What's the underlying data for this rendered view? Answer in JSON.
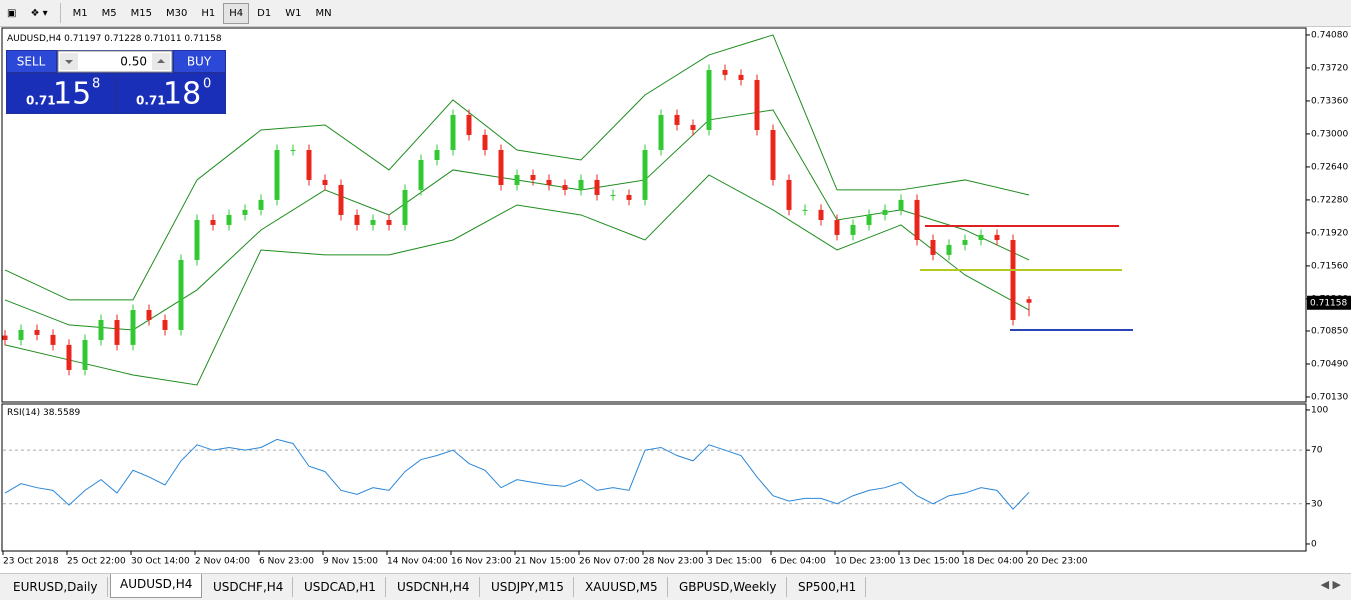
{
  "toolbar": {
    "timeframes": [
      "M1",
      "M5",
      "M15",
      "M30",
      "H1",
      "H4",
      "D1",
      "W1",
      "MN"
    ],
    "active": 5
  },
  "tabs": {
    "items": [
      "EURUSD,Daily",
      "AUDUSD,H4",
      "USDCHF,H4",
      "USDCAD,H1",
      "USDCNH,H4",
      "USDJPY,M15",
      "XAUUSD,M5",
      "GBPUSD,Weekly",
      "SP500,H1"
    ],
    "active": 1
  },
  "trade_panel": {
    "sell": "SELL",
    "buy": "BUY",
    "lot": "0.50",
    "bid": [
      "0.71",
      "15",
      "8"
    ],
    "ask": [
      "0.71",
      "18",
      "0"
    ]
  },
  "chart_data": {
    "type": "candlestick",
    "title": "AUDUSD,H4",
    "categories": [
      "23 Oct 2018",
      null,
      null,
      null,
      "25 Oct 22:00",
      null,
      null,
      null,
      "30 Oct 14:00",
      null,
      null,
      null,
      "2 Nov 04:00",
      null,
      null,
      null,
      "6 Nov 23:00",
      null,
      null,
      null,
      "9 Nov 15:00",
      null,
      null,
      null,
      "14 Nov 04:00",
      null,
      null,
      null,
      "16 Nov 23:00",
      null,
      null,
      null,
      "21 Nov 15:00",
      null,
      null,
      null,
      "26 Nov 07:00",
      null,
      null,
      null,
      "28 Nov 23:00",
      null,
      null,
      null,
      "3 Dec 15:00",
      null,
      null,
      null,
      "6 Dec 04:00",
      null,
      null,
      null,
      "10 Dec 23:00",
      null,
      null,
      null,
      "13 Dec 15:00",
      null,
      null,
      null,
      "18 Dec 04:00",
      null,
      null,
      null,
      "20 Dec 23:00"
    ],
    "open": [
      0.708,
      0.70752,
      0.70861,
      0.70807,
      0.70698,
      0.70425,
      0.70752,
      0.7097,
      0.70698,
      0.71079,
      0.7097,
      0.70861,
      0.71625,
      0.72061,
      0.72007,
      0.72116,
      0.72171,
      0.7228,
      0.72825,
      0.72825,
      0.72498,
      0.72443,
      0.72116,
      0.72007,
      0.72061,
      0.72007,
      0.72389,
      0.72716,
      0.72825,
      0.73207,
      0.72989,
      0.72825,
      0.72443,
      0.72552,
      0.72498,
      0.72443,
      0.72389,
      0.72498,
      0.72334,
      0.72334,
      0.7228,
      0.72825,
      0.73207,
      0.73098,
      0.73043,
      0.73698,
      0.73644,
      0.73589,
      0.73043,
      0.72498,
      0.72171,
      0.72171,
      0.72061,
      0.71898,
      0.72007,
      0.72116,
      0.72171,
      0.7228,
      0.71843,
      0.7168,
      0.71789,
      0.71843,
      0.71898,
      0.71843,
      0.71197
    ],
    "high": [
      0.7086,
      0.70921,
      0.70921,
      0.70867,
      0.70758,
      0.70812,
      0.7103,
      0.7103,
      0.71139,
      0.71139,
      0.7103,
      0.71685,
      0.72121,
      0.72121,
      0.72176,
      0.72231,
      0.7234,
      0.72885,
      0.72885,
      0.72885,
      0.72558,
      0.72503,
      0.72176,
      0.72121,
      0.72121,
      0.72449,
      0.72776,
      0.72885,
      0.73267,
      0.73267,
      0.73049,
      0.72885,
      0.72612,
      0.72612,
      0.72558,
      0.72503,
      0.72558,
      0.72558,
      0.72394,
      0.72394,
      0.72885,
      0.73267,
      0.73267,
      0.73158,
      0.73758,
      0.73758,
      0.73704,
      0.73649,
      0.73103,
      0.72558,
      0.72231,
      0.72231,
      0.72121,
      0.72067,
      0.72176,
      0.72231,
      0.7234,
      0.7234,
      0.71903,
      0.71849,
      0.71903,
      0.71958,
      0.71958,
      0.71903,
      0.71228
    ],
    "low": [
      0.70692,
      0.70692,
      0.70747,
      0.70638,
      0.70365,
      0.70365,
      0.70692,
      0.70638,
      0.70638,
      0.7091,
      0.70801,
      0.70801,
      0.71565,
      0.71947,
      0.71947,
      0.72056,
      0.72111,
      0.7222,
      0.72765,
      0.72438,
      0.72383,
      0.72056,
      0.71947,
      0.71947,
      0.71947,
      0.71947,
      0.72329,
      0.72656,
      0.72765,
      0.72929,
      0.72765,
      0.72383,
      0.72383,
      0.72438,
      0.72383,
      0.72329,
      0.72329,
      0.72274,
      0.72274,
      0.7222,
      0.7222,
      0.72765,
      0.73038,
      0.72983,
      0.72983,
      0.73584,
      0.73529,
      0.72983,
      0.72438,
      0.72111,
      0.72111,
      0.72001,
      0.71838,
      0.71838,
      0.71947,
      0.72056,
      0.72111,
      0.71783,
      0.7162,
      0.7162,
      0.71729,
      0.71783,
      0.71783,
      0.7091,
      0.71011
    ],
    "close": [
      0.70752,
      0.70861,
      0.70807,
      0.70698,
      0.70425,
      0.70752,
      0.7097,
      0.70698,
      0.71079,
      0.7097,
      0.70861,
      0.71625,
      0.72061,
      0.72007,
      0.72116,
      0.72171,
      0.7228,
      0.72825,
      0.72825,
      0.72498,
      0.72443,
      0.72116,
      0.72007,
      0.72061,
      0.72007,
      0.72389,
      0.72716,
      0.72825,
      0.73207,
      0.72989,
      0.72825,
      0.72443,
      0.72552,
      0.72498,
      0.72443,
      0.72389,
      0.72498,
      0.72334,
      0.72334,
      0.7228,
      0.72825,
      0.73207,
      0.73098,
      0.73043,
      0.73698,
      0.73644,
      0.73589,
      0.73043,
      0.72498,
      0.72171,
      0.72171,
      0.72061,
      0.71898,
      0.72007,
      0.72116,
      0.72171,
      0.7228,
      0.71843,
      0.7168,
      0.71789,
      0.71843,
      0.71898,
      0.71843,
      0.7097,
      0.71158
    ],
    "up_color": "#32c832",
    "down_color": "#e8261c",
    "bands": {
      "color": "#1e8c1e",
      "x": [
        0,
        4,
        8,
        12,
        16,
        20,
        24,
        28,
        32,
        36,
        40,
        44,
        48,
        52,
        56,
        60,
        64
      ],
      "upper": [
        0.71516,
        0.71189,
        0.71189,
        0.72498,
        0.73043,
        0.73098,
        0.72607,
        0.73371,
        0.72825,
        0.72716,
        0.73425,
        0.73862,
        0.7408,
        0.72389,
        0.72389,
        0.72498,
        0.72334
      ],
      "middle": [
        0.71189,
        0.70916,
        0.70861,
        0.71298,
        0.71952,
        0.72389,
        0.72116,
        0.72607,
        0.72498,
        0.72389,
        0.72498,
        0.73153,
        0.73262,
        0.72061,
        0.72171,
        0.71952,
        0.71625
      ],
      "lower": [
        0.70698,
        0.70534,
        0.7037,
        0.70261,
        0.71734,
        0.7168,
        0.7168,
        0.71843,
        0.72225,
        0.72116,
        0.71843,
        0.72552,
        0.72171,
        0.71734,
        0.72007,
        0.71461,
        0.71079
      ]
    },
    "levels": [
      {
        "value": 0.71996,
        "color": "#e02020"
      },
      {
        "value": 0.71516,
        "color": "#b4c81e"
      },
      {
        "value": 0.70861,
        "color": "#2a44b8"
      }
    ],
    "ylim": [
      0.70086,
      0.74145
    ],
    "yticks": [
      {
        "value": 0.7408,
        "label": "0.74080"
      },
      {
        "value": 0.7372,
        "label": "0.73720"
      },
      {
        "value": 0.7336,
        "label": "0.73360"
      },
      {
        "value": 0.73,
        "label": "0.73000"
      },
      {
        "value": 0.7264,
        "label": "0.72640"
      },
      {
        "value": 0.7228,
        "label": "0.72280"
      },
      {
        "value": 0.7192,
        "label": "0.71920"
      },
      {
        "value": 0.7156,
        "label": "0.71560"
      },
      {
        "value": 0.712,
        "label": "0.71200"
      },
      {
        "value": 0.7085,
        "label": "0.70850"
      },
      {
        "value": 0.7049,
        "label": "0.70490"
      },
      {
        "value": 0.7013,
        "label": "0.70130"
      }
    ],
    "rsi": {
      "name": "RSI(14)",
      "color": "#2a86d8",
      "ylim": [
        -4.5,
        103.7
      ],
      "yticks": [
        100,
        70,
        30,
        0
      ],
      "levels": [
        70,
        30
      ],
      "values": [
        38,
        45,
        42,
        40,
        29,
        40,
        48,
        38,
        55,
        50,
        44,
        62,
        74,
        70,
        72,
        70,
        72,
        78,
        75,
        58,
        54,
        40,
        37,
        42,
        40,
        54,
        63,
        66,
        70,
        60,
        55,
        42,
        48,
        46,
        44,
        43,
        48,
        40,
        42,
        40,
        70,
        72,
        66,
        62,
        74,
        70,
        66,
        50,
        36,
        32,
        34,
        34,
        30,
        36,
        40,
        42,
        46,
        36,
        30,
        36,
        38,
        42,
        40,
        26,
        38.5589
      ]
    }
  }
}
